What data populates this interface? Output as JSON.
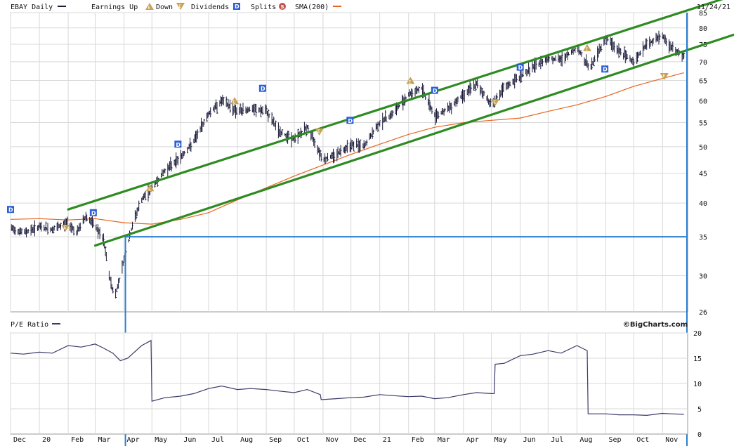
{
  "legend": {
    "ticker": "EBAY Daily",
    "earnings_label": "Earnings Up",
    "down_label": "Down",
    "dividends_label": "Dividends",
    "splits_label": "Splits",
    "sma_label": "SMA(200)",
    "date": "11/24/21"
  },
  "watermark": "©BigCharts.com",
  "colors": {
    "price_bars": "#1a1a3a",
    "sma": "#e8641e",
    "channel": "#2e8b22",
    "annotation": "#2a7fd0",
    "dividend_marker": "#2a5fd6",
    "earnings_marker": "#c8a050",
    "split_marker": "#c8504a",
    "grid": "#d8d8d8",
    "pe_line": "#3a3a6a"
  },
  "chart_data": [
    {
      "type": "line",
      "name": "price",
      "scale": "log",
      "x_tick_labels": [
        "Dec",
        "20",
        "Feb",
        "Mar",
        "Apr",
        "May",
        "Jun",
        "Jul",
        "Aug",
        "Sep",
        "Oct",
        "Nov",
        "Dec",
        "21",
        "Feb",
        "Mar",
        "Apr",
        "May",
        "Jun",
        "Jul",
        "Aug",
        "Sep",
        "Oct",
        "Nov"
      ],
      "y_ticks": [
        26,
        30,
        35,
        40,
        45,
        50,
        55,
        60,
        65,
        70,
        75,
        80,
        85
      ],
      "ylim": [
        26,
        85
      ],
      "series": [
        {
          "name": "EBAY Daily",
          "x": [
            "2019-12-01",
            "2019-12-15",
            "2020-01-01",
            "2020-01-15",
            "2020-02-01",
            "2020-02-10",
            "2020-02-20",
            "2020-03-01",
            "2020-03-10",
            "2020-03-16",
            "2020-03-22",
            "2020-03-28",
            "2020-04-05",
            "2020-04-12",
            "2020-04-20",
            "2020-05-01",
            "2020-05-15",
            "2020-06-01",
            "2020-06-15",
            "2020-07-01",
            "2020-07-15",
            "2020-08-01",
            "2020-08-15",
            "2020-09-01",
            "2020-09-15",
            "2020-10-01",
            "2020-10-15",
            "2020-11-01",
            "2020-11-15",
            "2020-12-01",
            "2020-12-15",
            "2021-01-01",
            "2021-01-15",
            "2021-02-01",
            "2021-02-15",
            "2021-03-01",
            "2021-03-15",
            "2021-04-01",
            "2021-04-15",
            "2021-05-01",
            "2021-05-15",
            "2021-06-01",
            "2021-06-15",
            "2021-07-01",
            "2021-07-15",
            "2021-08-01",
            "2021-08-15",
            "2021-09-01",
            "2021-09-15",
            "2021-10-01",
            "2021-10-15",
            "2021-11-01",
            "2021-11-10",
            "2021-11-24"
          ],
          "values": [
            36.2,
            35.6,
            36.4,
            36.0,
            37.0,
            35.5,
            38.0,
            36.5,
            34.5,
            30.0,
            27.5,
            30.0,
            34.0,
            37.5,
            40.5,
            42.5,
            45.5,
            48.0,
            51.0,
            57.0,
            60.0,
            57.5,
            58.0,
            57.5,
            53.0,
            51.5,
            54.0,
            47.5,
            48.5,
            50.5,
            50.0,
            55.0,
            57.0,
            61.5,
            63.0,
            56.5,
            58.0,
            61.5,
            64.0,
            59.0,
            63.0,
            66.0,
            68.5,
            71.0,
            70.5,
            74.0,
            68.0,
            77.0,
            73.0,
            70.0,
            75.0,
            77.5,
            74.0,
            71.5
          ]
        },
        {
          "name": "SMA(200)",
          "x": [
            "2019-12-01",
            "2020-01-01",
            "2020-02-01",
            "2020-03-01",
            "2020-04-01",
            "2020-05-01",
            "2020-06-01",
            "2020-07-01",
            "2020-08-01",
            "2020-09-01",
            "2020-10-01",
            "2020-11-01",
            "2020-12-01",
            "2021-01-01",
            "2021-02-01",
            "2021-03-01",
            "2021-04-01",
            "2021-05-01",
            "2021-06-01",
            "2021-07-01",
            "2021-08-01",
            "2021-09-01",
            "2021-10-01",
            "2021-11-01",
            "2021-11-24"
          ],
          "values": [
            37.5,
            37.6,
            37.4,
            37.6,
            37.0,
            36.8,
            37.5,
            38.5,
            40.5,
            42.5,
            44.5,
            46.5,
            48.5,
            50.5,
            52.5,
            54.0,
            55.0,
            55.5,
            56.0,
            57.5,
            59.0,
            61.0,
            63.5,
            65.5,
            67.0
          ]
        }
      ],
      "trendlines": [
        {
          "x": [
            "2020-02-01",
            "2021-11-30"
          ],
          "y": [
            39.0,
            86.0
          ]
        },
        {
          "x": [
            "2020-03-01",
            "2021-11-30"
          ],
          "y": [
            33.8,
            73.5
          ]
        }
      ],
      "horizontal_line": 35,
      "markers": [
        {
          "kind": "dividend",
          "x": "2019-12-01",
          "y": 39.0,
          "label": "D"
        },
        {
          "kind": "earnings_down",
          "x": "2020-01-29",
          "y": 36.2,
          "label": "E"
        },
        {
          "kind": "dividend",
          "x": "2020-02-28",
          "y": 38.5,
          "label": "D"
        },
        {
          "kind": "earnings_up",
          "x": "2020-04-29",
          "y": 42.5,
          "label": "E"
        },
        {
          "kind": "dividend",
          "x": "2020-05-29",
          "y": 50.5,
          "label": "D"
        },
        {
          "kind": "earnings_up",
          "x": "2020-07-29",
          "y": 60.0,
          "label": "E"
        },
        {
          "kind": "dividend",
          "x": "2020-08-28",
          "y": 63.0,
          "label": "D"
        },
        {
          "kind": "earnings_down",
          "x": "2020-10-28",
          "y": 53.0,
          "label": "E"
        },
        {
          "kind": "dividend",
          "x": "2020-11-30",
          "y": 55.5,
          "label": "D"
        },
        {
          "kind": "earnings_up",
          "x": "2021-02-03",
          "y": 65.0,
          "label": "E"
        },
        {
          "kind": "dividend",
          "x": "2021-03-01",
          "y": 62.5,
          "label": "D"
        },
        {
          "kind": "earnings_down",
          "x": "2021-05-05",
          "y": 59.5,
          "label": "E"
        },
        {
          "kind": "dividend",
          "x": "2021-06-01",
          "y": 68.5,
          "label": "D"
        },
        {
          "kind": "earnings_up",
          "x": "2021-08-12",
          "y": 74.0,
          "label": "E"
        },
        {
          "kind": "dividend",
          "x": "2021-08-31",
          "y": 68.0,
          "label": "D"
        },
        {
          "kind": "earnings_down",
          "x": "2021-11-03",
          "y": 66.0,
          "label": "E"
        }
      ],
      "grid": true
    },
    {
      "type": "line",
      "name": "pe",
      "title": "P/E Ratio",
      "y_ticks": [
        0,
        5,
        10,
        15,
        20
      ],
      "ylim": [
        0,
        20
      ],
      "series": [
        {
          "name": "P/E Ratio",
          "x": [
            "2019-12-01",
            "2019-12-15",
            "2020-01-01",
            "2020-01-15",
            "2020-02-01",
            "2020-02-15",
            "2020-03-01",
            "2020-03-10",
            "2020-03-20",
            "2020-03-28",
            "2020-04-05",
            "2020-04-20",
            "2020-04-30",
            "2020-05-01",
            "2020-05-15",
            "2020-06-01",
            "2020-06-15",
            "2020-07-01",
            "2020-07-15",
            "2020-08-01",
            "2020-08-15",
            "2020-09-01",
            "2020-09-15",
            "2020-10-01",
            "2020-10-15",
            "2020-10-29",
            "2020-10-30",
            "2020-11-15",
            "2020-12-01",
            "2020-12-15",
            "2021-01-01",
            "2021-01-15",
            "2021-02-01",
            "2021-02-15",
            "2021-03-01",
            "2021-03-15",
            "2021-04-01",
            "2021-04-15",
            "2021-05-01",
            "2021-05-04",
            "2021-05-05",
            "2021-05-15",
            "2021-06-01",
            "2021-06-15",
            "2021-07-01",
            "2021-07-15",
            "2021-08-01",
            "2021-08-12",
            "2021-08-13",
            "2021-09-01",
            "2021-09-15",
            "2021-10-01",
            "2021-10-15",
            "2021-11-01",
            "2021-11-10",
            "2021-11-24"
          ],
          "values": [
            16.0,
            15.8,
            16.2,
            16.0,
            17.5,
            17.2,
            17.8,
            17.0,
            16.0,
            14.5,
            15.0,
            17.5,
            18.5,
            6.5,
            7.2,
            7.5,
            8.0,
            9.0,
            9.5,
            8.8,
            9.0,
            8.8,
            8.5,
            8.2,
            8.8,
            7.8,
            6.8,
            7.0,
            7.2,
            7.3,
            7.8,
            7.6,
            7.4,
            7.5,
            7.0,
            7.2,
            7.8,
            8.2,
            8.0,
            8.0,
            13.8,
            14.0,
            15.5,
            15.8,
            16.5,
            16.0,
            17.5,
            16.5,
            4.0,
            4.0,
            3.8,
            3.8,
            3.7,
            4.1,
            4.0,
            3.9
          ]
        }
      ],
      "grid": true
    }
  ]
}
